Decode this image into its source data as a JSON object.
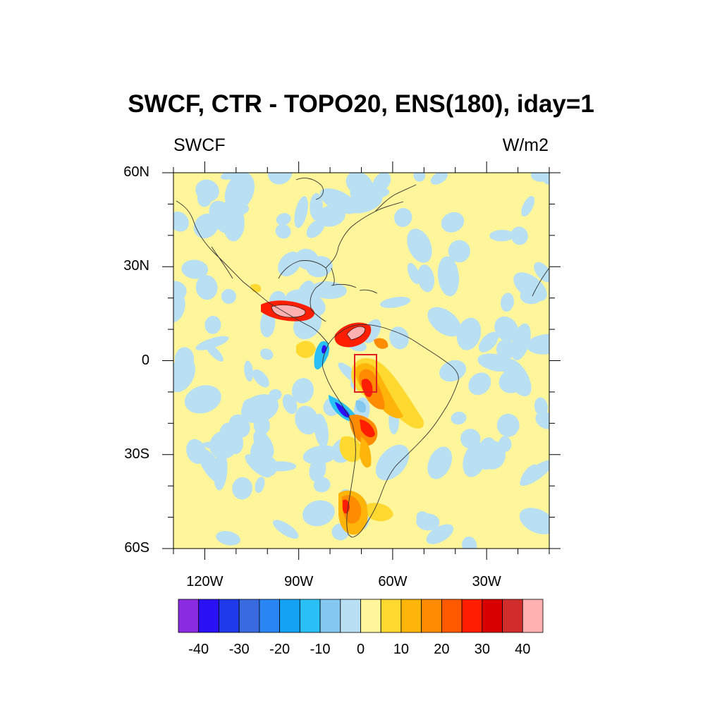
{
  "title": "SWCF, CTR - TOPO20, ENS(180), iday=1",
  "subtitle_left": "SWCF",
  "subtitle_right": "W/m2",
  "lat_ticks": [
    {
      "label": "60N",
      "value": 60
    },
    {
      "label": "30N",
      "value": 30
    },
    {
      "label": "0",
      "value": 0
    },
    {
      "label": "30S",
      "value": -30
    },
    {
      "label": "60S",
      "value": -60
    }
  ],
  "lon_ticks": [
    {
      "label": "120W",
      "value": -120
    },
    {
      "label": "90W",
      "value": -90
    },
    {
      "label": "60W",
      "value": -60
    },
    {
      "label": "30W",
      "value": -30
    }
  ],
  "map": {
    "lon_range": [
      -130,
      -10
    ],
    "lat_range": [
      -60,
      60
    ]
  },
  "highlight_box": {
    "lon": [
      -73,
      -66
    ],
    "lat": [
      -10,
      2
    ]
  },
  "colorbar": {
    "colors": [
      "#8a2be2",
      "#2a10f5",
      "#1e3aeb",
      "#3a6ae0",
      "#2a86f5",
      "#14a2f5",
      "#28c0f5",
      "#84c8f0",
      "#b8e0f2",
      "#fff59a",
      "#ffd830",
      "#ffb40a",
      "#ff8c00",
      "#ff5a00",
      "#ff1e00",
      "#d80000",
      "#d22d2d",
      "#ffb0b0"
    ],
    "labels": [
      "-40",
      "-30",
      "-20",
      "-10",
      "0",
      "10",
      "20",
      "30",
      "40"
    ]
  },
  "field_colors": {
    "positive_weak": "#fff59a",
    "negative_weak": "#b8e0f2"
  }
}
